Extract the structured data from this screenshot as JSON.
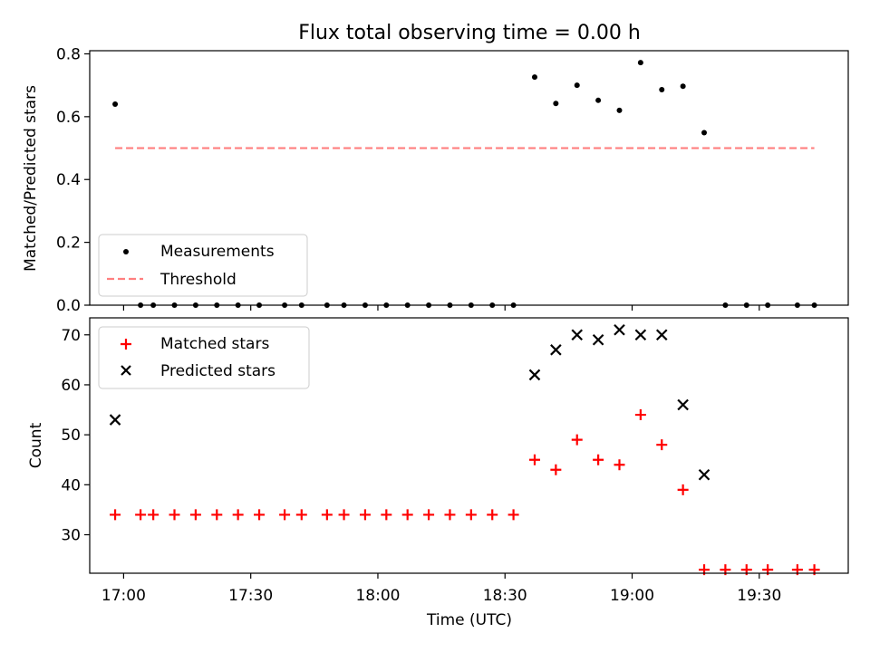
{
  "title": "Flux total observing time = 0.00 h",
  "chart_data": [
    {
      "type": "scatter",
      "title": "Flux total observing time = 0.00 h",
      "xlabel": "",
      "ylabel": "Matched/Predicted stars",
      "xlim": [
        "16:52",
        "19:51"
      ],
      "ylim": [
        0,
        0.81
      ],
      "yticks": [
        0.0,
        0.2,
        0.4,
        0.6,
        0.8
      ],
      "ytick_labels": [
        "0.0",
        "0.2",
        "0.4",
        "0.6",
        "0.8"
      ],
      "xticks": [
        "17:00",
        "17:30",
        "18:00",
        "18:30",
        "19:00",
        "19:30"
      ],
      "grid": false,
      "legend_position": "lower-left",
      "series": [
        {
          "name": "Measurements",
          "marker": "dot",
          "color": "#000000",
          "x": [
            "16:58",
            "17:04",
            "17:07",
            "17:12",
            "17:17",
            "17:22",
            "17:27",
            "17:32",
            "17:38",
            "17:42",
            "17:48",
            "17:52",
            "17:57",
            "18:02",
            "18:07",
            "18:12",
            "18:17",
            "18:22",
            "18:27",
            "18:32",
            "18:37",
            "18:42",
            "18:47",
            "18:52",
            "18:57",
            "19:02",
            "19:07",
            "19:12",
            "19:17",
            "19:22",
            "19:27",
            "19:32",
            "19:39",
            "19:43"
          ],
          "values": [
            0.64,
            0,
            0,
            0,
            0,
            0,
            0,
            0,
            0,
            0,
            0,
            0,
            0,
            0,
            0,
            0,
            0,
            0,
            0,
            0,
            0.726,
            0.642,
            0.7,
            0.652,
            0.62,
            0.772,
            0.686,
            0.697,
            0.549,
            0,
            0,
            0,
            0,
            0
          ]
        },
        {
          "name": "Threshold",
          "line_style": "dashed",
          "color": "#ff7f7f",
          "x": [
            "16:58",
            "19:43"
          ],
          "values": [
            0.5,
            0.5
          ]
        }
      ]
    },
    {
      "type": "scatter",
      "title": "",
      "xlabel": "Time (UTC)",
      "ylabel": "Count",
      "xlim": [
        "16:52",
        "19:51"
      ],
      "ylim": [
        22.3,
        73.4
      ],
      "yticks": [
        30,
        40,
        50,
        60,
        70
      ],
      "ytick_labels": [
        "30",
        "40",
        "50",
        "60",
        "70"
      ],
      "xticks": [
        "17:00",
        "17:30",
        "18:00",
        "18:30",
        "19:00",
        "19:30"
      ],
      "grid": false,
      "legend_position": "upper-left",
      "series": [
        {
          "name": "Matched stars",
          "marker": "plus",
          "color": "#ff0000",
          "x": [
            "16:58",
            "17:04",
            "17:07",
            "17:12",
            "17:17",
            "17:22",
            "17:27",
            "17:32",
            "17:38",
            "17:42",
            "17:48",
            "17:52",
            "17:57",
            "18:02",
            "18:07",
            "18:12",
            "18:17",
            "18:22",
            "18:27",
            "18:32",
            "18:37",
            "18:42",
            "18:47",
            "18:52",
            "18:57",
            "19:02",
            "19:07",
            "19:12",
            "19:17",
            "19:22",
            "19:27",
            "19:32",
            "19:39",
            "19:43"
          ],
          "values": [
            34,
            34,
            34,
            34,
            34,
            34,
            34,
            34,
            34,
            34,
            34,
            34,
            34,
            34,
            34,
            34,
            34,
            34,
            34,
            34,
            45,
            43,
            49,
            45,
            44,
            54,
            48,
            39,
            23,
            23,
            23,
            23,
            23,
            23
          ]
        },
        {
          "name": "Predicted stars",
          "marker": "x",
          "color": "#000000",
          "x": [
            "16:58",
            "18:37",
            "18:42",
            "18:47",
            "18:52",
            "18:57",
            "19:02",
            "19:07",
            "19:12",
            "19:17"
          ],
          "values": [
            53,
            62,
            67,
            70,
            69,
            71,
            70,
            70,
            56,
            42
          ]
        }
      ]
    }
  ]
}
